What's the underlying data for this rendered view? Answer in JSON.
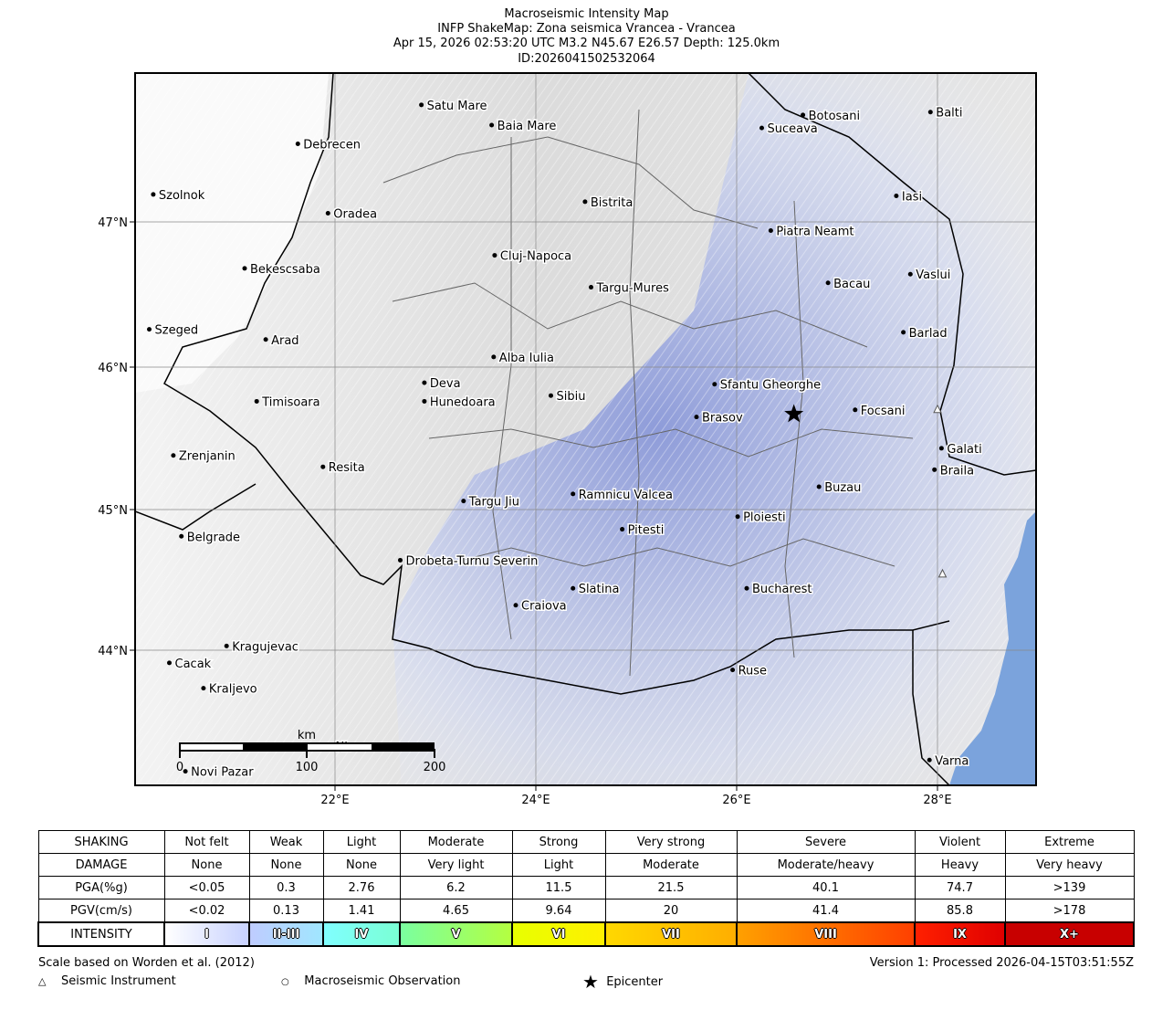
{
  "title": {
    "line1": "Macroseismic Intensity Map",
    "line2": "INFP ShakeMap: Zona seismica Vrancea - Vrancea",
    "line3": "Apr 15, 2026 02:53:20 UTC M3.2 N45.67 E26.57 Depth: 125.0km",
    "line4": "ID:2026041502532064"
  },
  "map": {
    "lon_range": [
      20.0,
      29.0
    ],
    "lat_range": [
      43.04,
      48.03
    ],
    "lon_ticks": [
      {
        "v": 22,
        "label": "22°E"
      },
      {
        "v": 24,
        "label": "24°E"
      },
      {
        "v": 26,
        "label": "26°E"
      },
      {
        "v": 28,
        "label": "28°E"
      }
    ],
    "lat_ticks": [
      {
        "v": 47,
        "label": "47°N"
      },
      {
        "v": 46,
        "label": "46°N"
      },
      {
        "v": 45,
        "label": "45°N"
      },
      {
        "v": 44,
        "label": "44°N"
      }
    ],
    "epicenter": {
      "lon": 26.57,
      "lat": 45.67
    },
    "instruments": [
      {
        "lon": 28.0,
        "lat": 45.7
      },
      {
        "lon": 28.05,
        "lat": 44.54
      }
    ],
    "scale_bar": {
      "unit": "km",
      "labels": [
        "0",
        "100",
        "200"
      ]
    },
    "sea_color": "#7ba3dc",
    "cities": [
      {
        "name": "Satu Mare",
        "lon": 22.86,
        "lat": 47.81
      },
      {
        "name": "Baia Mare",
        "lon": 23.56,
        "lat": 47.67
      },
      {
        "name": "Botosani",
        "lon": 26.66,
        "lat": 47.74
      },
      {
        "name": "Balti",
        "lon": 27.93,
        "lat": 47.76
      },
      {
        "name": "Suceava",
        "lon": 26.25,
        "lat": 47.65
      },
      {
        "name": "Debrecen",
        "lon": 21.63,
        "lat": 47.54
      },
      {
        "name": "Szolnok",
        "lon": 20.19,
        "lat": 47.19
      },
      {
        "name": "Bistrita",
        "lon": 24.49,
        "lat": 47.14
      },
      {
        "name": "Iasi",
        "lon": 27.59,
        "lat": 47.18
      },
      {
        "name": "Oradea",
        "lon": 21.93,
        "lat": 47.06
      },
      {
        "name": "Piatra Neamt",
        "lon": 26.34,
        "lat": 46.94
      },
      {
        "name": "Cluj-Napoca",
        "lon": 23.59,
        "lat": 46.77
      },
      {
        "name": "Bekescsaba",
        "lon": 21.1,
        "lat": 46.68
      },
      {
        "name": "Vaslui",
        "lon": 27.73,
        "lat": 46.64
      },
      {
        "name": "Bacau",
        "lon": 26.91,
        "lat": 46.58
      },
      {
        "name": "Targu-Mures",
        "lon": 24.55,
        "lat": 46.55
      },
      {
        "name": "Szeged",
        "lon": 20.15,
        "lat": 46.26
      },
      {
        "name": "Barlad",
        "lon": 27.66,
        "lat": 46.24
      },
      {
        "name": "Arad",
        "lon": 21.31,
        "lat": 46.19
      },
      {
        "name": "Alba Iulia",
        "lon": 23.58,
        "lat": 46.07
      },
      {
        "name": "Deva",
        "lon": 22.89,
        "lat": 45.89
      },
      {
        "name": "Sfantu Gheorghe",
        "lon": 25.78,
        "lat": 45.88
      },
      {
        "name": "Sibiu",
        "lon": 24.15,
        "lat": 45.8
      },
      {
        "name": "Hunedoara",
        "lon": 22.89,
        "lat": 45.76
      },
      {
        "name": "Timisoara",
        "lon": 21.22,
        "lat": 45.76
      },
      {
        "name": "Focsani",
        "lon": 27.18,
        "lat": 45.7
      },
      {
        "name": "Brasov",
        "lon": 25.6,
        "lat": 45.65
      },
      {
        "name": "Galati",
        "lon": 28.04,
        "lat": 45.43
      },
      {
        "name": "Zrenjanin",
        "lon": 20.39,
        "lat": 45.38
      },
      {
        "name": "Resita",
        "lon": 21.88,
        "lat": 45.3
      },
      {
        "name": "Braila",
        "lon": 27.97,
        "lat": 45.28
      },
      {
        "name": "Buzau",
        "lon": 26.82,
        "lat": 45.16
      },
      {
        "name": "Ramnicu Valcea",
        "lon": 24.37,
        "lat": 45.11
      },
      {
        "name": "Targu Jiu",
        "lon": 23.28,
        "lat": 45.06
      },
      {
        "name": "Ploiesti",
        "lon": 26.01,
        "lat": 44.95
      },
      {
        "name": "Pitesti",
        "lon": 24.86,
        "lat": 44.86
      },
      {
        "name": "Belgrade",
        "lon": 20.47,
        "lat": 44.81
      },
      {
        "name": "Drobeta-Turnu Severin",
        "lon": 22.65,
        "lat": 44.64
      },
      {
        "name": "Slatina",
        "lon": 24.37,
        "lat": 44.44
      },
      {
        "name": "Bucharest",
        "lon": 26.1,
        "lat": 44.44
      },
      {
        "name": "Craiova",
        "lon": 23.8,
        "lat": 44.32
      },
      {
        "name": "Kragujevac",
        "lon": 20.92,
        "lat": 44.03
      },
      {
        "name": "Cacak",
        "lon": 20.35,
        "lat": 43.91
      },
      {
        "name": "Ruse",
        "lon": 25.96,
        "lat": 43.86
      },
      {
        "name": "Kraljevo",
        "lon": 20.69,
        "lat": 43.73
      },
      {
        "name": "Varna",
        "lon": 27.92,
        "lat": 43.22
      },
      {
        "name": "Novi Pazar",
        "lon": 20.51,
        "lat": 43.14
      },
      {
        "name": "Nis",
        "lon": 21.95,
        "lat": 43.32
      }
    ]
  },
  "legend": {
    "rows": [
      {
        "label": "SHAKING",
        "cells": [
          "Not felt",
          "Weak",
          "Light",
          "Moderate",
          "Strong",
          "Very strong",
          "Severe",
          "Violent",
          "Extreme"
        ]
      },
      {
        "label": "DAMAGE",
        "cells": [
          "None",
          "None",
          "None",
          "Very light",
          "Light",
          "Moderate",
          "Moderate/heavy",
          "Heavy",
          "Very heavy"
        ]
      },
      {
        "label": "PGA(%g)",
        "cells": [
          "<0.05",
          "0.3",
          "2.76",
          "6.2",
          "11.5",
          "21.5",
          "40.1",
          "74.7",
          ">139"
        ]
      },
      {
        "label": "PGV(cm/s)",
        "cells": [
          "<0.02",
          "0.13",
          "1.41",
          "4.65",
          "9.64",
          "20",
          "41.4",
          "85.8",
          ">178"
        ]
      }
    ],
    "intensity": {
      "label": "INTENSITY",
      "cells": [
        "I",
        "II-III",
        "IV",
        "V",
        "VI",
        "VII",
        "VIII",
        "IX",
        "X+"
      ],
      "gradients": [
        [
          "#ffffff",
          "#c8d2ff"
        ],
        [
          "#bfccff",
          "#a0e6ff"
        ],
        [
          "#80ffff",
          "#7affd4"
        ],
        [
          "#7affa0",
          "#b4ff40"
        ],
        [
          "#e8ff00",
          "#fff000"
        ],
        [
          "#ffd800",
          "#ffae00"
        ],
        [
          "#ffa000",
          "#ff4000"
        ],
        [
          "#ff2000",
          "#e00000"
        ],
        [
          "#c80000",
          "#c80000"
        ]
      ]
    }
  },
  "footer": {
    "scale_note": "Scale based on Worden et al. (2012)",
    "version": "Version 1: Processed 2026-04-15T03:51:55Z",
    "key_instrument": "Seismic Instrument",
    "key_macro": "Macroseismic Observation",
    "key_epicenter": "Epicenter"
  }
}
